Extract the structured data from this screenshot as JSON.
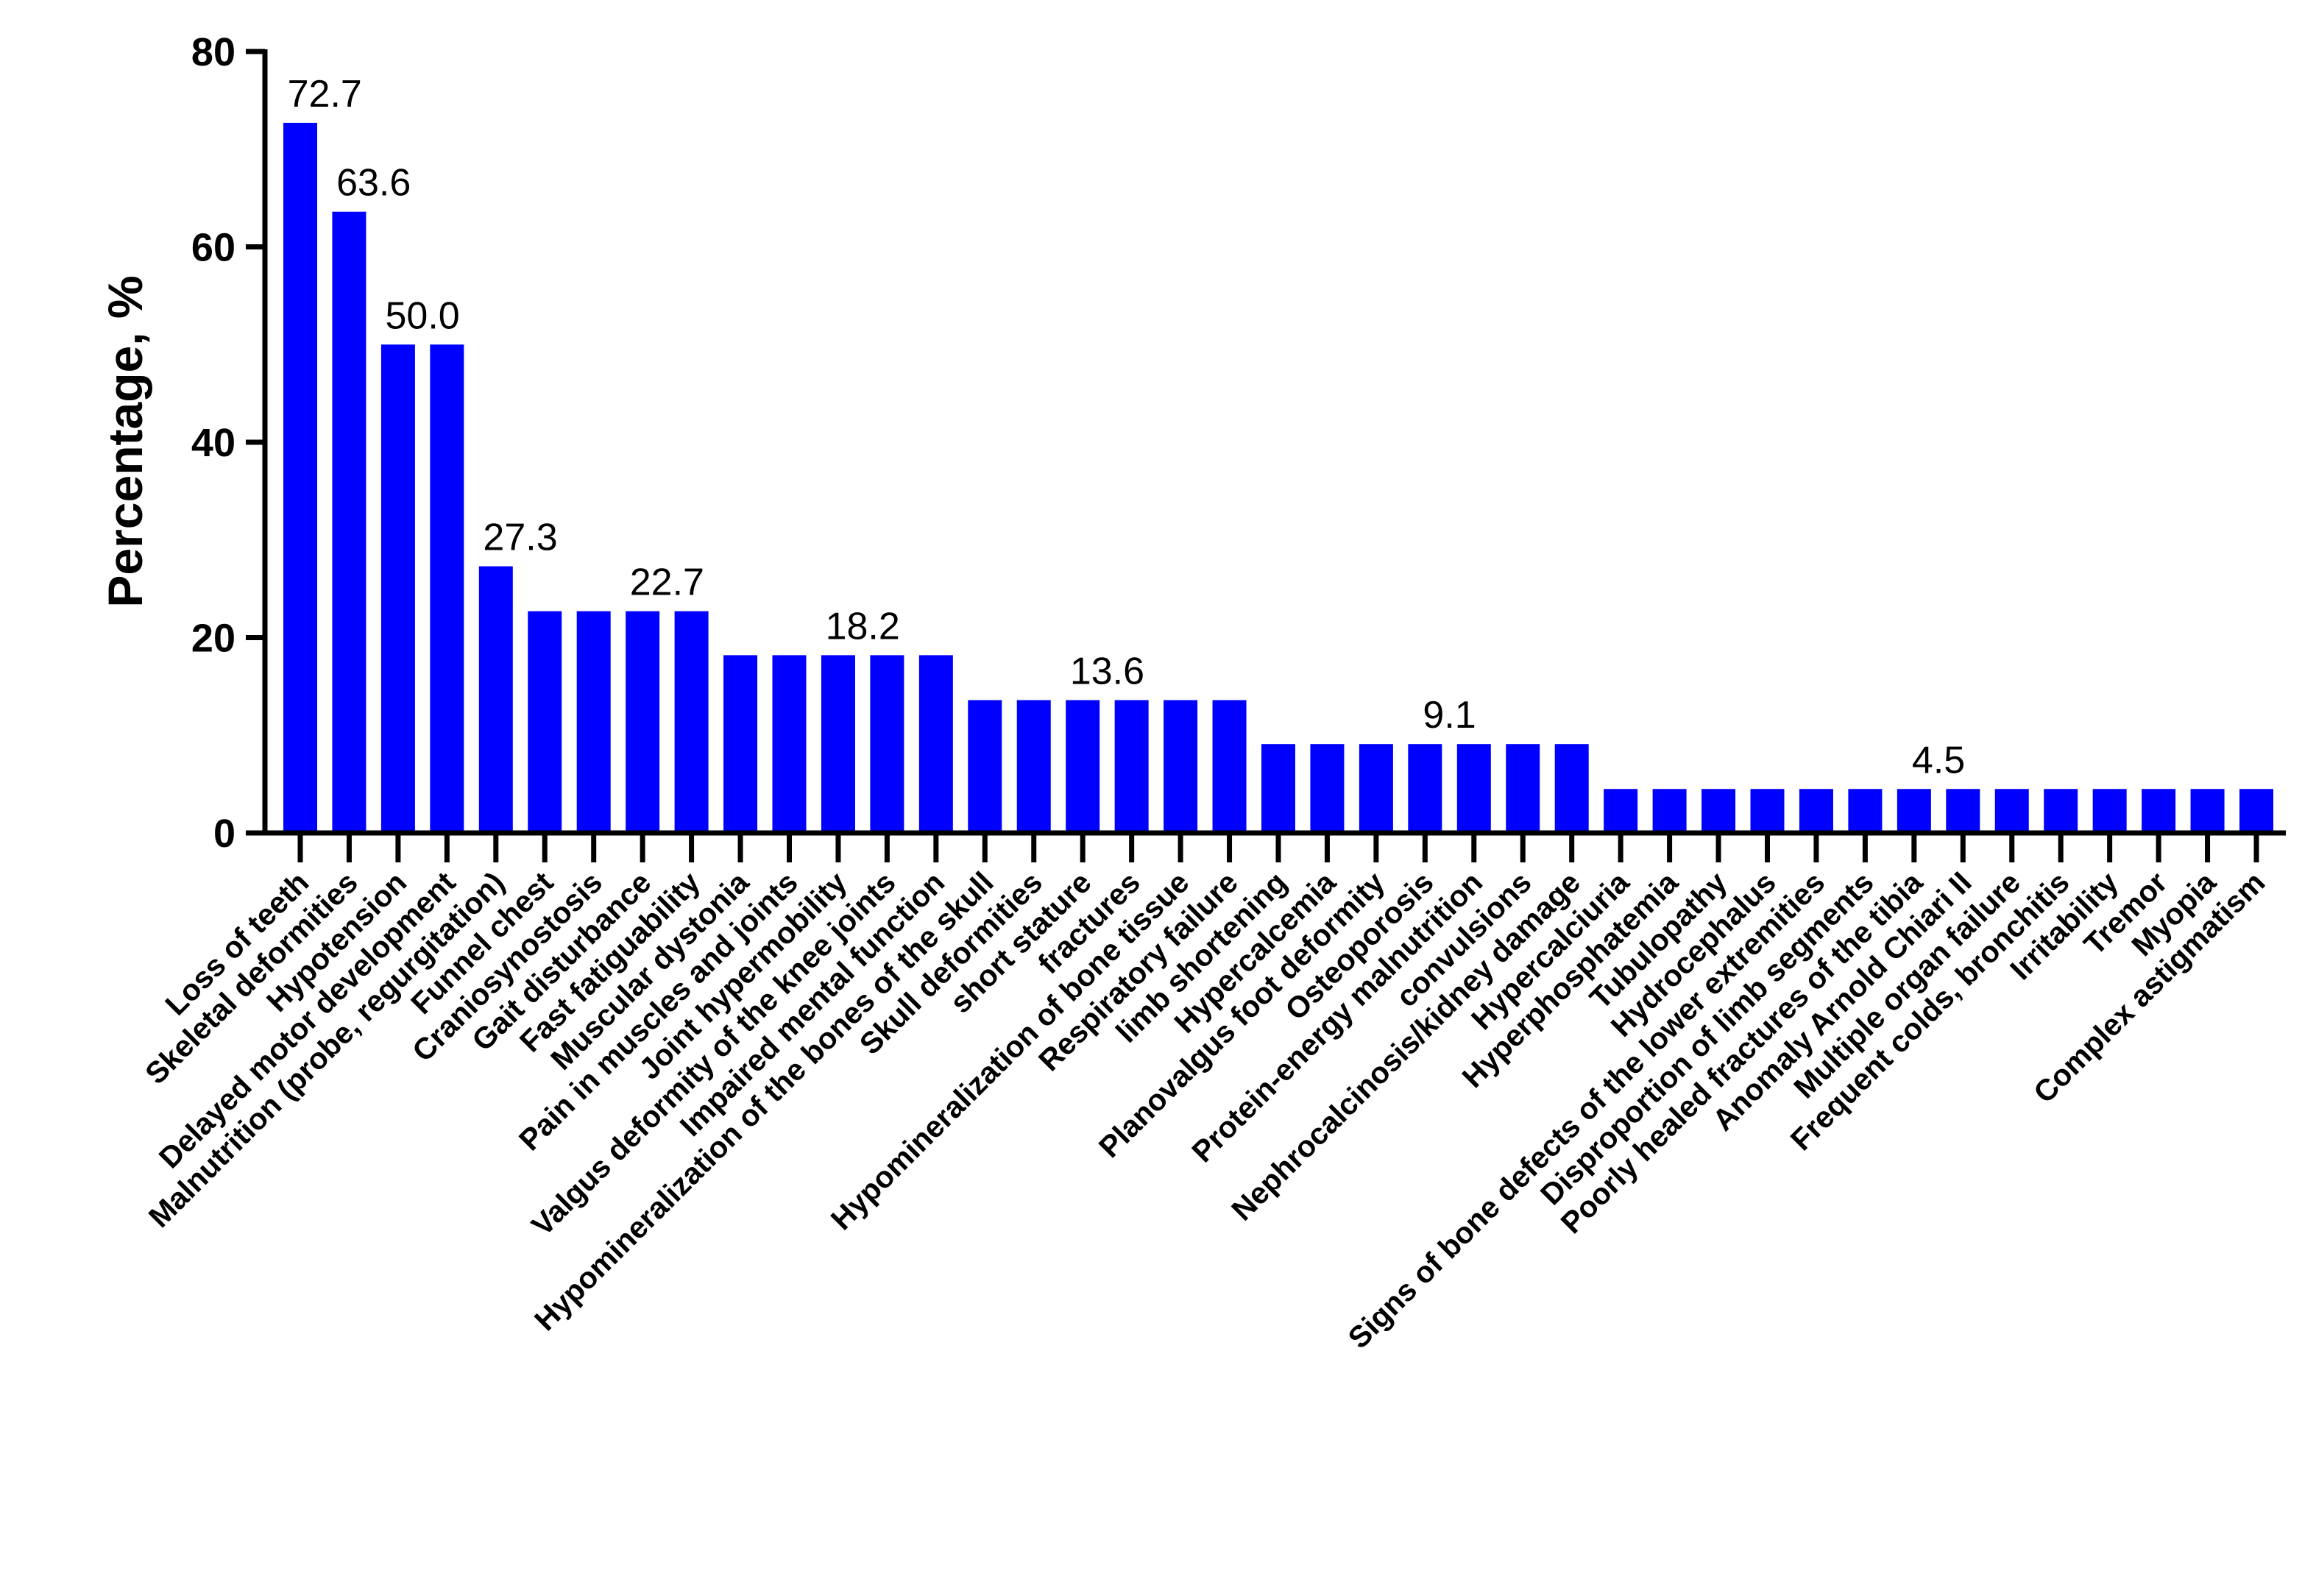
{
  "chart_data": {
    "type": "bar",
    "title": "",
    "xlabel": "",
    "ylabel": "Percentage, %",
    "ylim": [
      0,
      80
    ],
    "yticks": [
      0,
      20,
      40,
      60,
      80
    ],
    "grid": false,
    "legend": "none",
    "bar_color": "#0000FF",
    "categories": [
      "Loss of teeth",
      "Skeletal deformities",
      "Hypotension",
      "Delayed motor development",
      "Malnutrition (probe, regurgitation)",
      "Funnel chest",
      "Craniosynostosis",
      "Gait disturbance",
      "Fast fatiguability",
      "Muscular dystonia",
      "Pain in muscles and joints",
      "Joint hypermobility",
      "Valgus deformity of the knee joints",
      "Impaired mental function",
      "Hypomineralization of the bones of the skull",
      "Skull deformities",
      "short stature",
      "fractures",
      "Hypomineralization of bone tissue",
      "Respiratory failure",
      "limb shortening",
      "Hypercalcemia",
      "Planovalgus foot deformity",
      "Osteoporosis",
      "Protein-energy malnutrition",
      "convulsions",
      "Nephrocalcinosis/kidney damage",
      "Hypercalciuria",
      "Hyperphosphatemia",
      "Tubulopathy",
      "Hydrocephalus",
      "Signs of bone defects of the lower extremities",
      "Disproportion of limb segments",
      "Poorly healed fractures of the tibia",
      "Anomaly Arnold Chiari II",
      "Multiple organ failure",
      "Frequent colds, bronchitis",
      "Irritability",
      "Tremor",
      "Myopia",
      "Complex astigmatism"
    ],
    "values": [
      72.7,
      63.6,
      50.0,
      50.0,
      27.3,
      22.7,
      22.7,
      22.7,
      22.7,
      18.2,
      18.2,
      18.2,
      18.2,
      18.2,
      13.6,
      13.6,
      13.6,
      13.6,
      13.6,
      13.6,
      9.1,
      9.1,
      9.1,
      9.1,
      9.1,
      9.1,
      9.1,
      4.5,
      4.5,
      4.5,
      4.5,
      4.5,
      4.5,
      4.5,
      4.5,
      4.5,
      4.5,
      4.5,
      4.5,
      4.5,
      4.5
    ],
    "annotations": [
      {
        "category_index": 0,
        "text": "72.7"
      },
      {
        "category_index": 1,
        "text": "63.6"
      },
      {
        "category_index": 2,
        "text": "50.0"
      },
      {
        "category_index": 4,
        "text": "27.3"
      },
      {
        "category_index": 7,
        "text": "22.7"
      },
      {
        "category_index": 11,
        "text": "18.2"
      },
      {
        "category_index": 16,
        "text": "13.6"
      },
      {
        "category_index": 23,
        "text": "9.1"
      },
      {
        "category_index": 33,
        "text": "4.5"
      }
    ]
  }
}
